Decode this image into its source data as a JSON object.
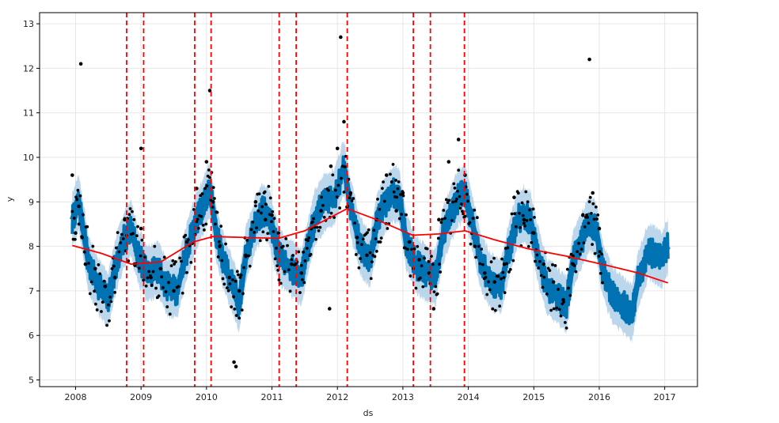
{
  "chart_data": {
    "type": "line",
    "title": "",
    "xlabel": "ds",
    "ylabel": "y",
    "xlim": [
      2007.45,
      2017.5
    ],
    "ylim": [
      4.85,
      13.25
    ],
    "x_ticks": [
      2008,
      2009,
      2010,
      2011,
      2012,
      2013,
      2014,
      2015,
      2016,
      2017
    ],
    "x_tick_labels": [
      "2008",
      "2009",
      "2010",
      "2011",
      "2012",
      "2013",
      "2014",
      "2015",
      "2016",
      "2017"
    ],
    "y_ticks": [
      5,
      6,
      7,
      8,
      9,
      10,
      11,
      12,
      13
    ],
    "y_tick_labels": [
      "5",
      "6",
      "7",
      "8",
      "9",
      "10",
      "11",
      "12",
      "13"
    ],
    "grid": true,
    "series": [
      {
        "name": "observed",
        "kind": "scatter",
        "color": "#000000",
        "x": [
          2007.95,
          2008.0,
          2008.05,
          2008.1,
          2008.15,
          2008.3,
          2008.45,
          2008.6,
          2008.75,
          2008.9,
          2009.0,
          2009.15,
          2009.3,
          2009.5,
          2009.7,
          2009.85,
          2010.0,
          2010.1,
          2010.2,
          2010.35,
          2010.5,
          2010.6,
          2010.75,
          2010.9,
          2011.0,
          2011.1,
          2011.3,
          2011.45,
          2011.6,
          2011.75,
          2011.9,
          2012.0,
          2012.1,
          2012.2,
          2012.3,
          2012.45,
          2012.6,
          2012.75,
          2012.9,
          2013.0,
          2013.1,
          2013.25,
          2013.4,
          2013.55,
          2013.7,
          2013.85,
          2013.95,
          2014.1,
          2014.25,
          2014.4,
          2014.55,
          2014.7,
          2014.85,
          2015.0,
          2015.15,
          2015.3,
          2015.45,
          2015.6,
          2015.75,
          2015.9,
          2016.0,
          2008.08,
          2009.0,
          2010.05,
          2010.42,
          2010.45,
          2011.88,
          2012.05,
          2013.47,
          2015.85
        ],
        "y": [
          9.6,
          8.3,
          8.9,
          8.2,
          7.6,
          7.5,
          7.1,
          7.3,
          8.6,
          7.6,
          8.4,
          7.3,
          7.5,
          7.0,
          8.1,
          9.3,
          9.9,
          9.0,
          8.0,
          7.3,
          7.0,
          7.8,
          9.0,
          8.6,
          8.7,
          8.3,
          7.6,
          7.4,
          8.4,
          8.8,
          9.8,
          10.2,
          10.8,
          9.2,
          8.2,
          7.8,
          8.6,
          9.6,
          8.8,
          9.2,
          8.1,
          7.7,
          7.4,
          8.6,
          9.9,
          10.4,
          9.6,
          8.0,
          7.4,
          7.2,
          7.6,
          9.1,
          8.6,
          8.3,
          7.6,
          7.2,
          6.8,
          7.6,
          8.7,
          9.2,
          8.4,
          12.1,
          10.2,
          11.5,
          5.4,
          5.3,
          6.6,
          12.7,
          6.6,
          12.2
        ]
      },
      {
        "name": "trend",
        "kind": "line",
        "color": "#ff0000",
        "x": [
          2007.95,
          2008.4,
          2008.85,
          2009.3,
          2009.8,
          2010.1,
          2010.6,
          2011.1,
          2011.5,
          2012.15,
          2012.6,
          2013.15,
          2013.55,
          2013.95,
          2014.4,
          2014.9,
          2015.5,
          2016.1,
          2016.6,
          2017.05
        ],
        "y": [
          8.02,
          7.84,
          7.6,
          7.65,
          8.1,
          8.22,
          8.2,
          8.18,
          8.35,
          8.85,
          8.6,
          8.25,
          8.28,
          8.35,
          8.15,
          7.95,
          7.78,
          7.58,
          7.4,
          7.18
        ]
      }
    ],
    "forecast": {
      "name": "yhat",
      "color": "#0072b2",
      "x": [
        2007.95,
        2008.05,
        2008.2,
        2008.35,
        2008.5,
        2008.6,
        2008.75,
        2008.85,
        2008.95,
        2009.1,
        2009.25,
        2009.4,
        2009.55,
        2009.7,
        2009.85,
        2009.95,
        2010.05,
        2010.15,
        2010.25,
        2010.4,
        2010.5,
        2010.6,
        2010.75,
        2010.85,
        2010.95,
        2011.05,
        2011.15,
        2011.3,
        2011.45,
        2011.55,
        2011.65,
        2011.8,
        2011.95,
        2012.1,
        2012.2,
        2012.35,
        2012.5,
        2012.6,
        2012.7,
        2012.85,
        2012.95,
        2013.05,
        2013.2,
        2013.35,
        2013.5,
        2013.6,
        2013.75,
        2013.85,
        2013.95,
        2014.05,
        2014.2,
        2014.35,
        2014.5,
        2014.6,
        2014.75,
        2014.85,
        2014.95,
        2015.05,
        2015.2,
        2015.35,
        2015.5,
        2015.6,
        2015.75,
        2015.85,
        2015.95,
        2016.05,
        2016.2,
        2016.35,
        2016.5,
        2016.6,
        2016.75,
        2016.85,
        2016.95,
        2017.05
      ],
      "yhat": [
        8.6,
        9.0,
        7.6,
        7.1,
        6.8,
        7.5,
        8.2,
        8.4,
        7.8,
        7.4,
        7.5,
        7.1,
        7.0,
        7.9,
        8.6,
        8.9,
        9.3,
        8.3,
        7.7,
        7.1,
        6.7,
        7.8,
        8.5,
        8.8,
        8.7,
        8.1,
        7.7,
        7.5,
        7.3,
        8.0,
        8.6,
        9.0,
        9.1,
        9.8,
        8.9,
        8.0,
        7.7,
        8.5,
        8.9,
        9.2,
        9.1,
        8.1,
        7.6,
        7.4,
        7.3,
        8.2,
        8.8,
        9.1,
        9.2,
        8.6,
        7.6,
        7.2,
        7.1,
        7.8,
        8.6,
        8.7,
        8.6,
        7.9,
        7.1,
        6.9,
        6.7,
        7.7,
        8.2,
        8.5,
        8.4,
        7.5,
        6.9,
        6.7,
        6.5,
        7.3,
        7.9,
        7.8,
        7.7,
        8.0
      ],
      "band_color": "#a6c8e6"
    },
    "changepoints": [
      2008.78,
      2009.04,
      2009.82,
      2010.07,
      2011.11,
      2011.37,
      2012.15,
      2013.16,
      2013.42,
      2013.94
    ],
    "changepoint_color": "#ff0000"
  }
}
